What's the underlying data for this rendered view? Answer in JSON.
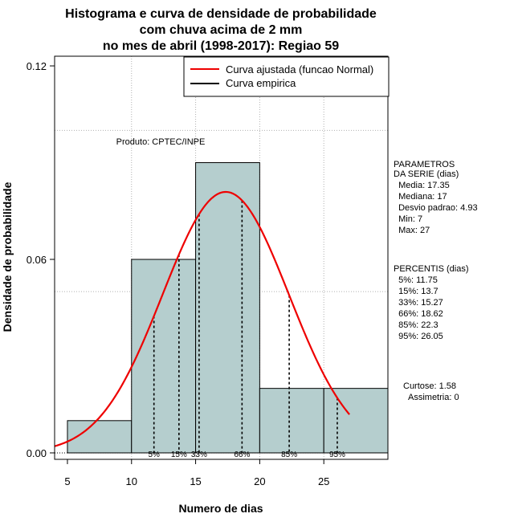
{
  "chart_data": {
    "type": "histogram",
    "title_lines": [
      "Histograma e curva de densidade de probabilidade",
      "com chuva acima de 2 mm",
      "no mes de abril (1998-2017): Regiao 59"
    ],
    "xlabel": "Numero de dias",
    "ylabel": "Densidade de probabilidade",
    "xlim": [
      4,
      30
    ],
    "ylim": [
      -0.002,
      0.123
    ],
    "x_ticks": [
      5,
      10,
      15,
      20,
      25
    ],
    "y_ticks": [
      0.0,
      0.06,
      0.12
    ],
    "y_tick_labels": [
      "0.00",
      "0.06",
      "0.12"
    ],
    "grid_x": [
      10,
      15,
      20,
      25
    ],
    "grid_y": [
      0.0,
      0.05,
      0.1
    ],
    "bins": [
      {
        "from": 5,
        "to": 10,
        "density": 0.01
      },
      {
        "from": 10,
        "to": 15,
        "density": 0.06
      },
      {
        "from": 15,
        "to": 20,
        "density": 0.09
      },
      {
        "from": 20,
        "to": 25,
        "density": 0.02
      },
      {
        "from": 25,
        "to": 30,
        "density": 0.02
      }
    ],
    "normal_curve": {
      "mean": 17.35,
      "sd": 4.93,
      "from": 4,
      "to": 27,
      "color": "#ee0000"
    },
    "bar_fill": "#b5cece",
    "percentile_markers": [
      {
        "label": "5%",
        "value": 11.75
      },
      {
        "label": "15%",
        "value": 13.7
      },
      {
        "label": "33%",
        "value": 15.27
      },
      {
        "label": "66%",
        "value": 18.62
      },
      {
        "label": "85%",
        "value": 22.3
      },
      {
        "label": "95%",
        "value": 26.05
      }
    ],
    "legend": {
      "position": "top-right",
      "entries": [
        {
          "label": "Curva ajustada (funcao Normal)",
          "color": "#ee0000"
        },
        {
          "label": "Curva empirica",
          "color": "#000000"
        }
      ]
    },
    "product_label": "Produto: CPTEC/INPE",
    "params_block": [
      "PARAMETROS",
      "DA SERIE (dias)",
      "  Media: 17.35",
      "  Mediana: 17",
      "  Desvio padrao: 4.93",
      "  Min: 7",
      "  Max: 27"
    ],
    "percentis_block": [
      "PERCENTIS (dias)",
      "  5%: 11.75",
      "  15%: 13.7",
      "  33%: 15.27",
      "  66%: 18.62",
      "  85%: 22.3",
      "  95%: 26.05"
    ],
    "stats_block": [
      "Curtose: 1.58",
      "Assimetria: 0"
    ]
  }
}
